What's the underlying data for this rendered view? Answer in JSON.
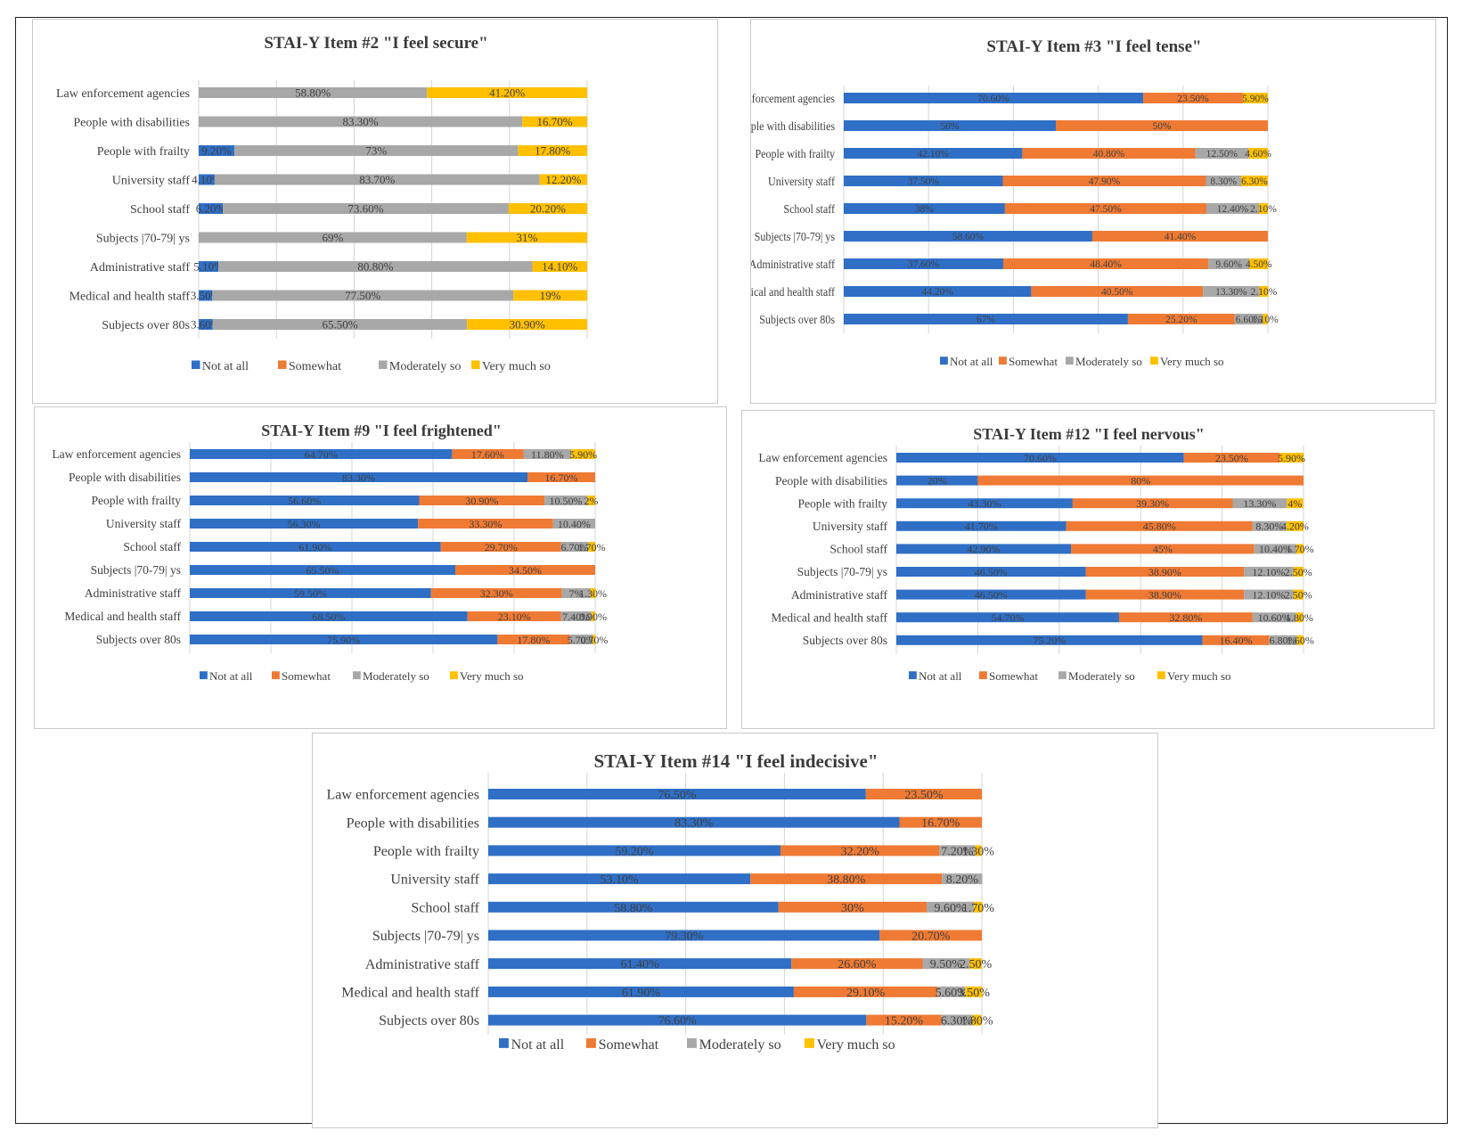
{
  "colors": {
    "not_at_all": "#2f6fc6",
    "somewhat": "#ef7a33",
    "moderately": "#a8a8a8",
    "very_much": "#ffc000",
    "grid": "#d4d4d4",
    "label": "#404040",
    "title": "#3a3a3a"
  },
  "chart_data": [
    {
      "type": "bar",
      "title": "STAI-Y Item #2 \"I feel secure\"",
      "legend_position": "bottom",
      "categories": [
        "Law enforcement agencies",
        "People with disabilities",
        "People with frailty",
        "University staff",
        "School staff",
        "Subjects |70-79| ys",
        "Administrative staff",
        "Medical and health staff",
        "Subjects over 80s"
      ],
      "series": [
        {
          "name": "Not at all",
          "values": [
            0,
            0,
            9.2,
            4.1,
            6.2,
            0,
            5.1,
            3.5,
            3.6
          ],
          "labels": [
            "",
            "",
            "9.20%",
            "4.10%",
            "6.20%",
            "",
            "5.10%",
            "3.50%",
            "3.60%"
          ]
        },
        {
          "name": "Somewhat",
          "values": [
            0,
            0,
            0,
            0,
            0,
            0,
            0,
            0,
            0
          ],
          "labels": [
            "",
            "",
            "",
            "",
            "",
            "",
            "",
            "",
            ""
          ]
        },
        {
          "name": "Moderately so",
          "values": [
            58.8,
            83.3,
            73,
            83.7,
            73.6,
            69,
            80.8,
            77.5,
            65.5
          ],
          "labels": [
            "58.80%",
            "83.30%",
            "73%",
            "83.70%",
            "73.60%",
            "69%",
            "80.80%",
            "77.50%",
            "65.50%"
          ]
        },
        {
          "name": "Very much so",
          "values": [
            41.2,
            16.7,
            17.8,
            12.2,
            20.2,
            31,
            14.1,
            19,
            30.9
          ],
          "labels": [
            "41.20%",
            "16.70%",
            "17.80%",
            "12.20%",
            "20.20%",
            "31%",
            "14.10%",
            "19%",
            "30.90%"
          ]
        }
      ]
    },
    {
      "type": "bar",
      "title": "STAI-Y Item #3 \"I feel tense\"",
      "legend_position": "bottom",
      "categories": [
        "Law enforcement agencies",
        "People with disabilities",
        "People with frailty",
        "University staff",
        "School staff",
        "Subjects |70-79| ys",
        "Administrative staff",
        "Medical and health staff",
        "Subjects over 80s"
      ],
      "series": [
        {
          "name": "Not at all",
          "values": [
            70.6,
            50,
            42.1,
            37.5,
            38,
            58.6,
            37.6,
            44.2,
            67
          ],
          "labels": [
            "70.60%",
            "50%",
            "42.10%",
            "37.50%",
            "38%",
            "58.60%",
            "37.60%",
            "44.20%",
            "67%"
          ]
        },
        {
          "name": "Somewhat",
          "values": [
            23.5,
            50,
            40.8,
            47.9,
            47.5,
            41.4,
            48.4,
            40.5,
            25.2
          ],
          "labels": [
            "23.50%",
            "50%",
            "40.80%",
            "47.90%",
            "47.50%",
            "41.40%",
            "48.40%",
            "40.50%",
            "25.20%"
          ]
        },
        {
          "name": "Moderately so",
          "values": [
            0,
            0,
            12.5,
            8.3,
            12.4,
            0,
            9.6,
            13.3,
            6.6
          ],
          "labels": [
            "",
            "",
            "12.50%",
            "8.30%",
            "12.40%",
            "",
            "9.60%",
            "13.30%",
            "6.60%"
          ]
        },
        {
          "name": "Very much so",
          "values": [
            5.9,
            0,
            4.6,
            6.3,
            2.1,
            0,
            4.5,
            2.1,
            1.1
          ],
          "labels": [
            "5.90%",
            "",
            "4.60%",
            "6.30%",
            "2.10%",
            "",
            "4.50%",
            "2.10%",
            "1.10%"
          ]
        }
      ]
    },
    {
      "type": "bar",
      "title": "STAI-Y Item #9 \"I feel frightened\"",
      "legend_position": "bottom",
      "categories": [
        "Law enforcement agencies",
        "People with disabilities",
        "People with frailty",
        "University staff",
        "School staff",
        "Subjects |70-79| ys",
        "Administrative staff",
        "Medical and health staff",
        "Subjects over 80s"
      ],
      "series": [
        {
          "name": "Not at all",
          "values": [
            64.7,
            83.3,
            56.6,
            56.3,
            61.9,
            65.5,
            59.5,
            68.5,
            75.9
          ],
          "labels": [
            "64.70%",
            "83.30%",
            "56.60%",
            "56.30%",
            "61.90%",
            "65.50%",
            "59.50%",
            "68.50%",
            "75.90%"
          ]
        },
        {
          "name": "Somewhat",
          "values": [
            17.6,
            16.7,
            30.9,
            33.3,
            29.7,
            34.5,
            32.3,
            23.1,
            17.8
          ],
          "labels": [
            "17.60%",
            "16.70%",
            "30.90%",
            "33.30%",
            "29.70%",
            "34.50%",
            "32.30%",
            "23.10%",
            "17.80%"
          ]
        },
        {
          "name": "Moderately so",
          "values": [
            11.8,
            0,
            10.5,
            10.4,
            6.7,
            0,
            7,
            7.4,
            5.7
          ],
          "labels": [
            "11.80%",
            "",
            "10.50%",
            "10.40%",
            "6.70%",
            "",
            "7%",
            "7.40%",
            "5.70%"
          ]
        },
        {
          "name": "Very much so",
          "values": [
            5.9,
            0,
            2,
            0,
            1.7,
            0,
            1.3,
            0.9,
            0.7
          ],
          "labels": [
            "5.90%",
            "",
            "2%",
            "",
            "1.70%",
            "",
            "1.30%",
            "0.90%",
            "0.70%"
          ]
        }
      ]
    },
    {
      "type": "bar",
      "title": "STAI-Y Item #12 \"I feel nervous\"",
      "legend_position": "bottom",
      "categories": [
        "Law enforcement agencies",
        "People with disabilities",
        "People with frailty",
        "University staff",
        "School staff",
        "Subjects |70-79| ys",
        "Administrative staff",
        "Medical and health staff",
        "Subjects over 80s"
      ],
      "series": [
        {
          "name": "Not at all",
          "values": [
            70.6,
            20,
            43.3,
            41.7,
            42.9,
            46.5,
            46.5,
            54.7,
            75.2
          ],
          "labels": [
            "70.60%",
            "20%",
            "43.30%",
            "41.70%",
            "42.90%",
            "46.50%",
            "46.50%",
            "54.70%",
            "75.20%"
          ]
        },
        {
          "name": "Somewhat",
          "values": [
            23.5,
            80,
            39.3,
            45.8,
            45,
            38.9,
            38.9,
            32.8,
            16.4
          ],
          "labels": [
            "23.50%",
            "80%",
            "39.30%",
            "45.80%",
            "45%",
            "38.90%",
            "38.90%",
            "32.80%",
            "16.40%"
          ]
        },
        {
          "name": "Moderately so",
          "values": [
            0,
            0,
            13.3,
            8.3,
            10.4,
            12.1,
            12.1,
            10.6,
            6.8
          ],
          "labels": [
            "",
            "",
            "13.30%",
            "8.30%",
            "10.40%",
            "12.10%",
            "12.10%",
            "10.60%",
            "6.80%"
          ]
        },
        {
          "name": "Very much so",
          "values": [
            5.9,
            0,
            4,
            4.2,
            1.7,
            2.5,
            2.5,
            1.8,
            1.6
          ],
          "labels": [
            "5.90%",
            "",
            "4%",
            "4.20%",
            "1.70%",
            "2.50%",
            "2.50%",
            "1.80%",
            "1.60%"
          ]
        }
      ]
    },
    {
      "type": "bar",
      "title": "STAI-Y Item #14 \"I feel indecisive\"",
      "legend_position": "bottom",
      "categories": [
        "Law enforcement agencies",
        "People with disabilities",
        "People with frailty",
        "University staff",
        "School staff",
        "Subjects |70-79| ys",
        "Administrative staff",
        "Medical and health staff",
        "Subjects over 80s"
      ],
      "series": [
        {
          "name": "Not at all",
          "values": [
            76.5,
            83.3,
            59.2,
            53.1,
            58.8,
            79.3,
            61.4,
            61.9,
            76.6
          ],
          "labels": [
            "76.50%",
            "83.30%",
            "59.20%",
            "53.10%",
            "58.80%",
            "79.30%",
            "61.40%",
            "61.90%",
            "76.60%"
          ]
        },
        {
          "name": "Somewhat",
          "values": [
            23.5,
            16.7,
            32.2,
            38.8,
            30,
            20.7,
            26.6,
            29.1,
            15.2
          ],
          "labels": [
            "23.50%",
            "16.70%",
            "32.20%",
            "38.80%",
            "30%",
            "20.70%",
            "26.60%",
            "29.10%",
            "15.20%"
          ]
        },
        {
          "name": "Moderately so",
          "values": [
            0,
            0,
            7.2,
            8.2,
            9.6,
            0,
            9.5,
            5.6,
            6.3
          ],
          "labels": [
            "",
            "",
            "7.20%",
            "8.20%",
            "9.60%",
            "",
            "9.50%",
            "5.60%",
            "6.30%"
          ]
        },
        {
          "name": "Very much so",
          "values": [
            0,
            0,
            1.3,
            0,
            1.7,
            0,
            2.5,
            3.5,
            1.8
          ],
          "labels": [
            "",
            "",
            "1.30%",
            "",
            "1.70%",
            "",
            "2.50%",
            "3.50%",
            "1.80%"
          ]
        }
      ]
    }
  ]
}
